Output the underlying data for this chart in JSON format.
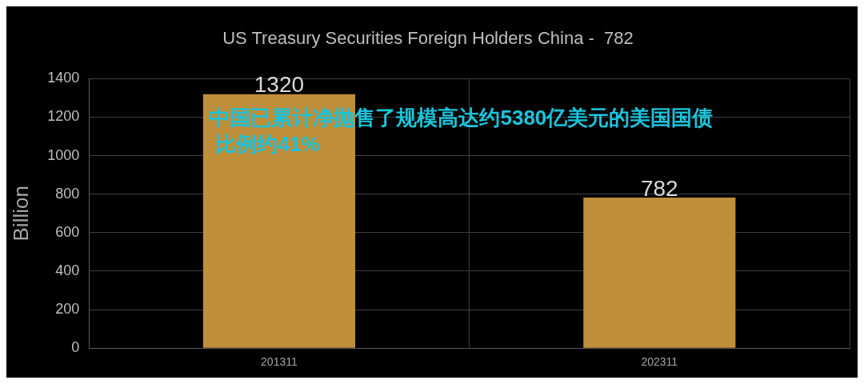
{
  "chart_data": {
    "type": "bar",
    "title": "US Treasury Securities Foreign Holders China -  782",
    "ylabel": "Billion",
    "categories": [
      "201311",
      "202311"
    ],
    "values": [
      1320,
      782
    ],
    "color": "#bf8f3c",
    "ylim": [
      0,
      1400
    ],
    "yticks": [
      0,
      200,
      400,
      600,
      800,
      1000,
      1200,
      1400
    ],
    "grid": true,
    "data_labels": true,
    "annotations": [
      "中国已累计净抛售了规模高达约5380亿美元的美国国债",
      "比例约41%"
    ]
  }
}
